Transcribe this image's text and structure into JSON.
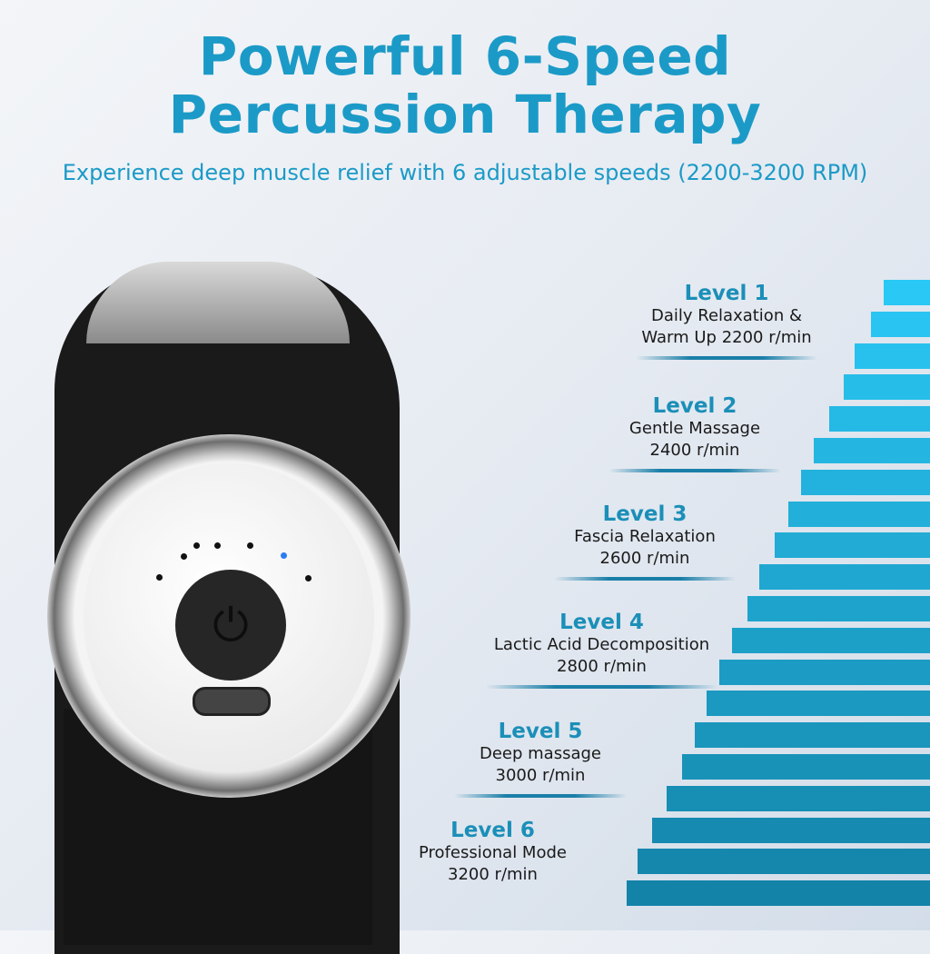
{
  "header": {
    "title_line1": "Powerful 6-Speed",
    "title_line2": "Percussion Therapy",
    "subtitle": "Experience deep muscle relief with 6 adjustable speeds (2200-3200 RPM)"
  },
  "levels": [
    {
      "label": "Level 1",
      "line1": "Daily Relaxation &",
      "line2": "Warm Up 2200 r/min"
    },
    {
      "label": "Level 2",
      "line1": "Gentle Massage",
      "line2": "2400 r/min"
    },
    {
      "label": "Level 3",
      "line1": "Fascia Relaxation",
      "line2": "2600 r/min"
    },
    {
      "label": "Level 4",
      "line1": "Lactic Acid Decomposition",
      "line2": "2800 r/min"
    },
    {
      "label": "Level 5",
      "line1": "Deep massage",
      "line2": "3000 r/min"
    },
    {
      "label": "Level 6",
      "line1": "Professional Mode",
      "line2": "3200 r/min"
    }
  ],
  "colors": {
    "accent": "#1b9ac7",
    "bar_top": "#2ac8f5",
    "bar_bottom": "#1483a8"
  },
  "icons": {
    "power": "power-icon",
    "port": "usb-c-port-icon"
  }
}
